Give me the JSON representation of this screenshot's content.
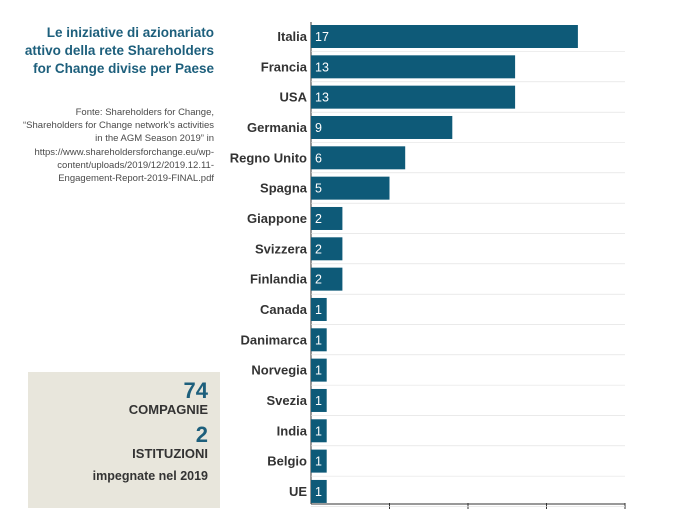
{
  "title": "Le iniziative di azionariato attivo della rete Shareholders for Change divise per Paese",
  "source": "Fonte: Shareholders for Change, “Shareholders for Change network’s activities in the AGM Season 2019” in https://www.shareholdersforchange.eu/wp-content/uploads/2019/12/2019.12.11-Engagement-Report-2019-FINAL.pdf",
  "stats": {
    "companies_num": "74",
    "companies_label": "COMPAGNIE",
    "institutions_num": "2",
    "institutions_label": "ISTITUZIONI",
    "note": "impegnate nel 2019"
  },
  "colors": {
    "bar": "#0e5a78",
    "title": "#1d5f7c",
    "box": "#e8e6dc"
  },
  "chart_data": {
    "type": "bar",
    "orientation": "horizontal",
    "categories": [
      "Italia",
      "Francia",
      "USA",
      "Germania",
      "Regno Unito",
      "Spagna",
      "Giappone",
      "Svizzera",
      "Finlandia",
      "Canada",
      "Danimarca",
      "Norvegia",
      "Svezia",
      "India",
      "Belgio",
      "UE"
    ],
    "values": [
      17,
      13,
      13,
      9,
      6,
      5,
      2,
      2,
      2,
      1,
      1,
      1,
      1,
      1,
      1,
      1
    ],
    "xlim": [
      0,
      20
    ],
    "grid": true,
    "data_labels": true
  }
}
